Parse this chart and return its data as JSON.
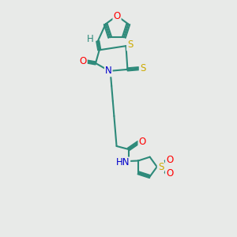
{
  "background_color": "#e8eae8",
  "bond_color": "#2d8a7a",
  "bond_width": 1.5,
  "atom_colors": {
    "O": "#ff0000",
    "N": "#0000cc",
    "S": "#ccaa00",
    "H": "#2d8a7a",
    "C": "#2d8a7a"
  },
  "font_size": 8.5,
  "fig_width": 3.0,
  "fig_height": 3.0,
  "dpi": 100
}
